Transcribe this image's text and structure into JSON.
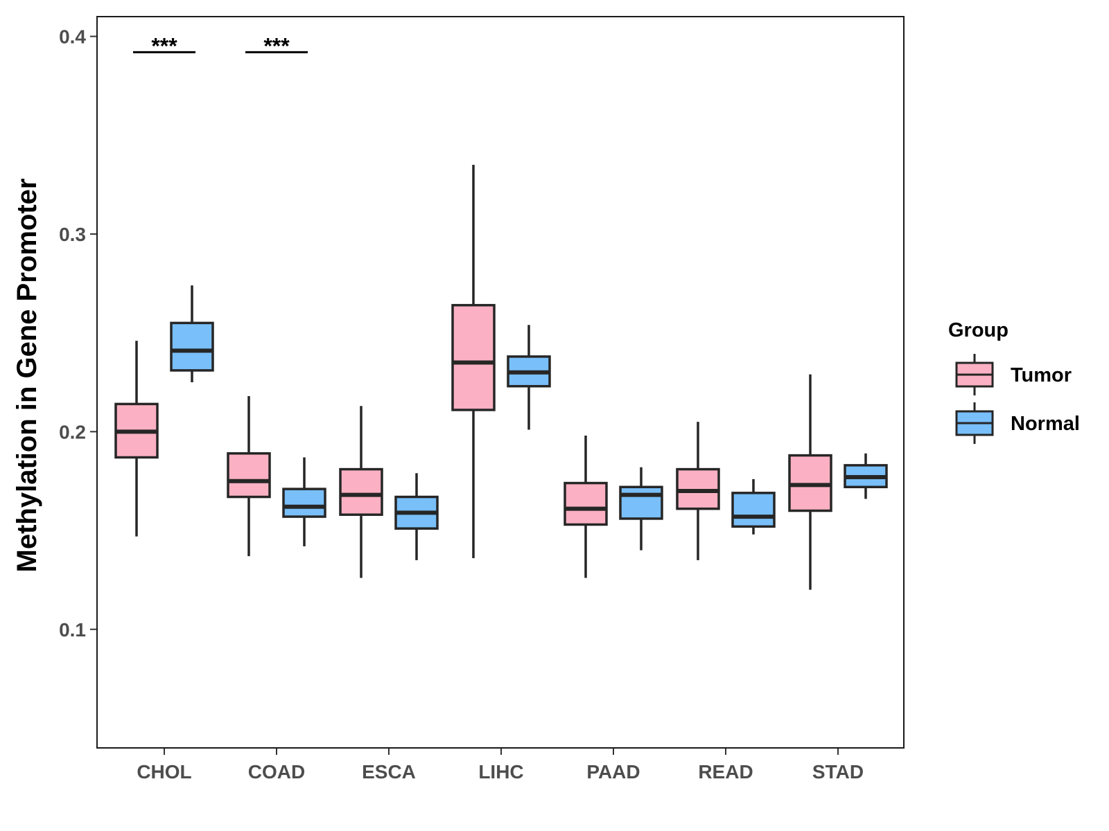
{
  "chart_data": {
    "type": "boxplot",
    "title": "",
    "xlabel": "",
    "ylabel": "Methylation in Gene Promoter",
    "ylim": [
      0.04,
      0.41
    ],
    "yticks": [
      0.1,
      0.2,
      0.3,
      0.4
    ],
    "ytick_labels": [
      "0.1",
      "0.2",
      "0.3",
      "0.4"
    ],
    "categories": [
      "CHOL",
      "COAD",
      "ESCA",
      "LIHC",
      "PAAD",
      "READ",
      "STAD"
    ],
    "legend": {
      "title": "Group",
      "position": "right",
      "entries": [
        "Tumor",
        "Normal"
      ]
    },
    "series": [
      {
        "name": "Tumor",
        "color": "#FBB1C3",
        "boxes": [
          {
            "min": 0.147,
            "q1": 0.187,
            "median": 0.2,
            "q3": 0.214,
            "max": 0.246
          },
          {
            "min": 0.137,
            "q1": 0.167,
            "median": 0.175,
            "q3": 0.189,
            "max": 0.218
          },
          {
            "min": 0.126,
            "q1": 0.158,
            "median": 0.168,
            "q3": 0.181,
            "max": 0.213
          },
          {
            "min": 0.136,
            "q1": 0.211,
            "median": 0.235,
            "q3": 0.264,
            "max": 0.335
          },
          {
            "min": 0.126,
            "q1": 0.153,
            "median": 0.161,
            "q3": 0.174,
            "max": 0.198
          },
          {
            "min": 0.135,
            "q1": 0.161,
            "median": 0.17,
            "q3": 0.181,
            "max": 0.205
          },
          {
            "min": 0.12,
            "q1": 0.16,
            "median": 0.173,
            "q3": 0.188,
            "max": 0.229
          }
        ]
      },
      {
        "name": "Normal",
        "color": "#79BFF9",
        "boxes": [
          {
            "min": 0.225,
            "q1": 0.231,
            "median": 0.241,
            "q3": 0.255,
            "max": 0.274
          },
          {
            "min": 0.142,
            "q1": 0.157,
            "median": 0.162,
            "q3": 0.171,
            "max": 0.187
          },
          {
            "min": 0.135,
            "q1": 0.151,
            "median": 0.159,
            "q3": 0.167,
            "max": 0.179
          },
          {
            "min": 0.201,
            "q1": 0.223,
            "median": 0.23,
            "q3": 0.238,
            "max": 0.254
          },
          {
            "min": 0.14,
            "q1": 0.156,
            "median": 0.168,
            "q3": 0.172,
            "max": 0.182
          },
          {
            "min": 0.148,
            "q1": 0.152,
            "median": 0.157,
            "q3": 0.169,
            "max": 0.176
          },
          {
            "min": 0.166,
            "q1": 0.172,
            "median": 0.177,
            "q3": 0.183,
            "max": 0.189
          }
        ]
      }
    ],
    "annotations": [
      {
        "category": "CHOL",
        "text": "***",
        "y": 0.392
      },
      {
        "category": "COAD",
        "text": "***",
        "y": 0.392
      }
    ]
  }
}
